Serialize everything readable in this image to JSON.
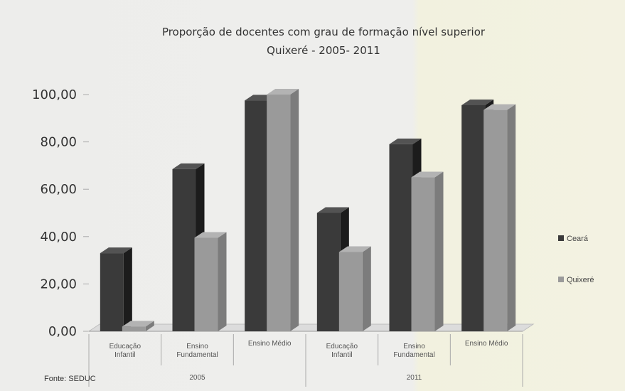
{
  "chart_data": {
    "type": "bar",
    "title": "Proporção de docentes com grau de formação nível superior",
    "subtitle": "Quixeré - 2005- 2011",
    "groups": [
      "2005",
      "2011"
    ],
    "categories": [
      {
        "line1": "Educação",
        "line2": "Infantil",
        "group": "2005"
      },
      {
        "line1": "Ensino",
        "line2": "Fundamental",
        "group": "2005"
      },
      {
        "line1": "Ensino Médio",
        "line2": "",
        "group": "2005"
      },
      {
        "line1": "Educação",
        "line2": "Infantil",
        "group": "2011"
      },
      {
        "line1": "Ensino",
        "line2": "Fundamental",
        "group": "2011"
      },
      {
        "line1": "Ensino Médio",
        "line2": "",
        "group": "2011"
      }
    ],
    "series": [
      {
        "name": "Ceará",
        "color": "#3a3a3a",
        "values": [
          33.0,
          68.5,
          97.5,
          50.0,
          79.0,
          95.5
        ]
      },
      {
        "name": "Quixeré",
        "color": "#9a9a9a",
        "values": [
          2.0,
          39.5,
          100.0,
          33.5,
          65.0,
          93.5
        ]
      }
    ],
    "ylim": [
      0,
      100
    ],
    "yticks": [
      "0,00",
      "20,00",
      "40,00",
      "60,00",
      "80,00",
      "100,00"
    ],
    "grid": false,
    "legend_position": "right",
    "source": "Fonte: SEDUC"
  }
}
